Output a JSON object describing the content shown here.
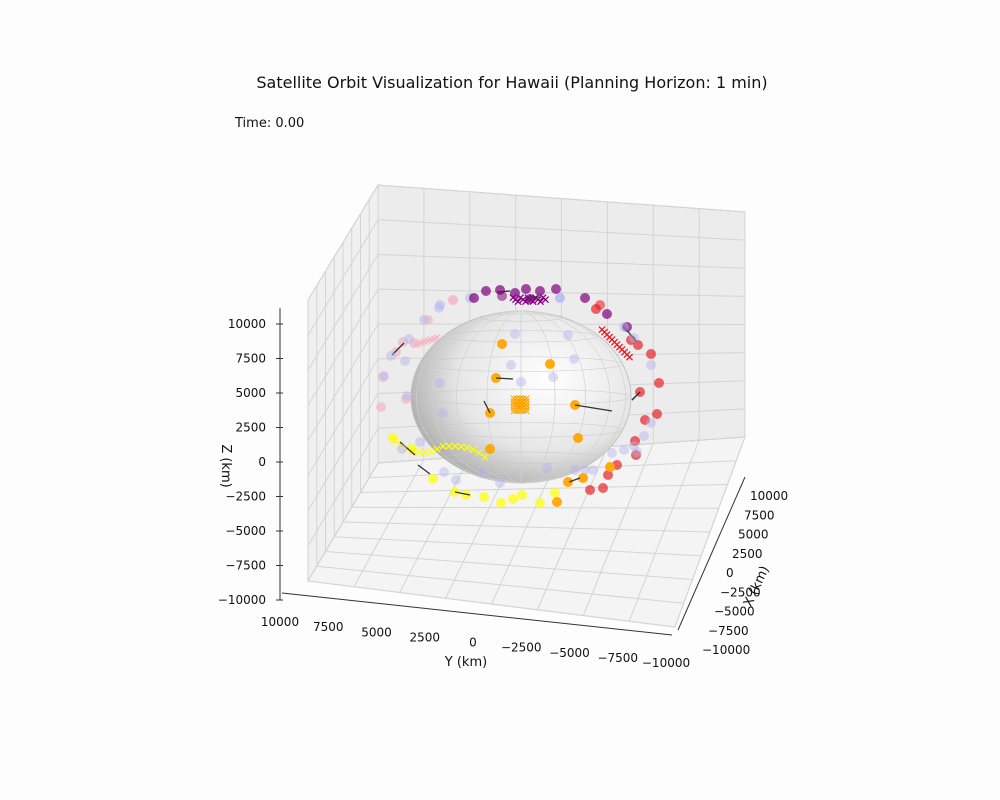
{
  "chart_data": {
    "type": "scatter",
    "projection": "3d",
    "title": "Satellite Orbit Visualization for Hawaii (Planning Horizon: 1 min)",
    "annotation": "Time: 0.00",
    "xlabel": "X (km)",
    "ylabel": "Y (km)",
    "zlabel": "Z (km)",
    "xlim": [
      -10000,
      10000
    ],
    "ylim": [
      -10000,
      10000
    ],
    "zlim": [
      -10000,
      10000
    ],
    "x_ticks": [
      "10000",
      "7500",
      "5000",
      "2500",
      "0",
      "−2500",
      "−5000",
      "−7500",
      "−10000"
    ],
    "y_ticks": [
      "10000",
      "7500",
      "5000",
      "2500",
      "0",
      "−2500",
      "−5000",
      "−7500",
      "−10000"
    ],
    "z_ticks": [
      "10000",
      "7500",
      "5000",
      "2500",
      "0",
      "−2500",
      "−5000",
      "−7500",
      "−10000"
    ],
    "grid": true,
    "earth_color": "#d9d9d9",
    "colors": {
      "purple": "#800080",
      "red": "#e8141c",
      "orange": "#ffa500",
      "yellow": "#ffff00",
      "pink": "#f4b6c8",
      "lavender": "#b4b4f0",
      "arrow": "#333333"
    }
  }
}
